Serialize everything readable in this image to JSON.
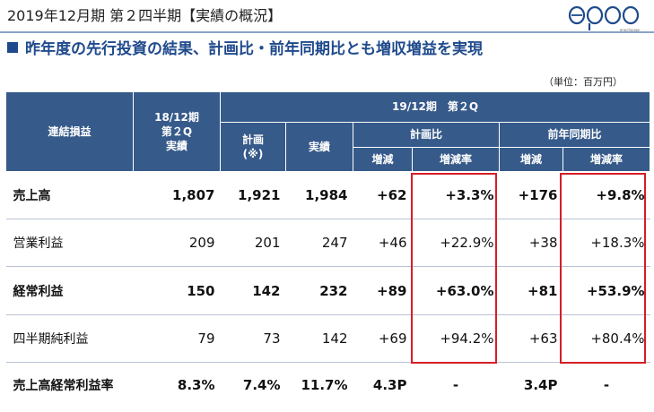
{
  "header": {
    "title": "2019年12月期 第２四半期【実績の概況】",
    "logo_text": "enechange"
  },
  "subtitle": "昨年度の先行投資の結果、計画比・前年同期比とも増収増益を実現",
  "unit": "（単位：百万円）",
  "table": {
    "headers": {
      "label_col": "連結損益",
      "prev_year": [
        "18/12期",
        "第２Q",
        "実績"
      ],
      "current_group": "19/12期　第２Q",
      "plan": [
        "計画",
        "(※)"
      ],
      "actual": "実績",
      "vs_plan": "計画比",
      "vs_prev": "前年同期比",
      "diff": "増減",
      "rate": "増減率"
    },
    "rows": [
      {
        "label": "売上高",
        "prev": "1,807",
        "plan": "1,921",
        "actual": "1,984",
        "plan_diff": "+62",
        "plan_rate": "+3.3%",
        "prev_diff": "+176",
        "prev_rate": "+9.8%"
      },
      {
        "label": "営業利益",
        "prev": "209",
        "plan": "201",
        "actual": "247",
        "plan_diff": "+46",
        "plan_rate": "+22.9%",
        "prev_diff": "+38",
        "prev_rate": "+18.3%"
      },
      {
        "label": "経常利益",
        "prev": "150",
        "plan": "142",
        "actual": "232",
        "plan_diff": "+89",
        "plan_rate": "+63.0%",
        "prev_diff": "+81",
        "prev_rate": "+53.9%"
      },
      {
        "label": "四半期純利益",
        "prev": "79",
        "plan": "73",
        "actual": "142",
        "plan_diff": "+69",
        "plan_rate": "+94.2%",
        "prev_diff": "+63",
        "prev_rate": "+80.4%"
      },
      {
        "label": "売上高経常利益率",
        "prev": "8.3%",
        "plan": "7.4%",
        "actual": "11.7%",
        "plan_diff": "4.3P",
        "plan_rate": "-",
        "prev_diff": "3.4P",
        "prev_rate": "-"
      }
    ]
  }
}
